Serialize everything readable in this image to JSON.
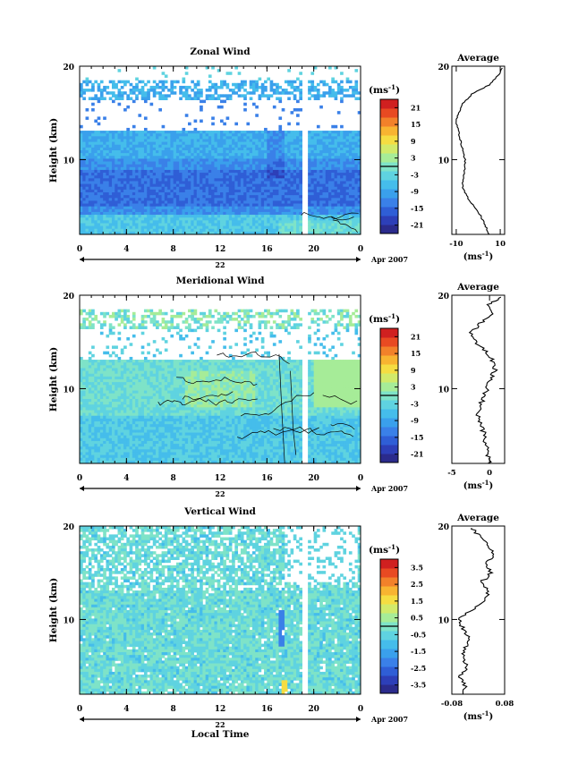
{
  "colors": {
    "colormap": [
      "#2b2b8c",
      "#2d3fb8",
      "#2f5ed6",
      "#3a80e8",
      "#3aa0ec",
      "#45bdeb",
      "#5fd3e0",
      "#7ee3c8",
      "#a6ec98",
      "#d2ea6a",
      "#f5dd42",
      "#f8b431",
      "#f2812a",
      "#e84a22",
      "#d02020"
    ],
    "zero_line": "#000000"
  },
  "chart_data": [
    {
      "type": "heatmap",
      "title": "Zonal Wind",
      "xlabel": "",
      "ylabel": "Height (km)",
      "x_ticks": [
        "0",
        "4",
        "8",
        "12",
        "16",
        "20",
        "0"
      ],
      "y_ticks": [
        "20",
        "10"
      ],
      "xlim": [
        0,
        24
      ],
      "ylim": [
        2,
        20
      ],
      "date_label": "22",
      "date_suffix": "Apr 2007",
      "colorbar": {
        "unit_prefix": "(ms",
        "unit_exp": "-1",
        "unit_suffix": ")",
        "ticks": [
          "21",
          "15",
          "9",
          "3",
          "-3",
          "-9",
          "-15",
          "-21"
        ],
        "range": [
          -24,
          24
        ]
      },
      "profile": {
        "title": "Average",
        "xlim": [
          -12,
          12
        ],
        "x_ticks": [
          "-10",
          "10"
        ],
        "xlabel_prefix": "(ms",
        "xlabel_exp": "-1",
        "xlabel_suffix": ")",
        "y_ticks": [
          "20",
          "10"
        ],
        "heights": [
          2,
          3,
          4,
          5,
          6,
          7,
          8,
          9,
          10,
          11,
          12,
          13,
          14,
          15,
          16,
          17,
          18,
          19,
          19.8
        ],
        "values": [
          5,
          3,
          1,
          -2,
          -5,
          -7,
          -7,
          -6,
          -6,
          -7,
          -8,
          -9,
          -10,
          -9,
          -7,
          -3,
          5,
          9,
          11
        ]
      }
    },
    {
      "type": "heatmap",
      "title": "Meridional Wind",
      "xlabel": "",
      "ylabel": "Height (km)",
      "x_ticks": [
        "0",
        "4",
        "8",
        "12",
        "16",
        "20",
        "0"
      ],
      "y_ticks": [
        "20",
        "10"
      ],
      "xlim": [
        0,
        24
      ],
      "ylim": [
        2,
        20
      ],
      "date_label": "22",
      "date_suffix": "Apr 2007",
      "colorbar": {
        "unit_prefix": "(ms",
        "unit_exp": "-1",
        "unit_suffix": ")",
        "ticks": [
          "21",
          "15",
          "9",
          "3",
          "-3",
          "-9",
          "-15",
          "-21"
        ],
        "range": [
          -24,
          24
        ]
      },
      "profile": {
        "title": "Average",
        "xlim": [
          -5,
          2
        ],
        "x_ticks": [
          "-5",
          "0"
        ],
        "xlabel_prefix": "(ms",
        "xlabel_exp": "-1",
        "xlabel_suffix": ")",
        "y_ticks": [
          "20",
          "10"
        ],
        "heights": [
          2,
          3,
          4,
          5,
          6,
          7,
          8,
          9,
          10,
          11,
          12,
          13,
          14,
          15,
          16,
          17,
          18,
          19,
          19.8
        ],
        "values": [
          0,
          -0.3,
          -0.5,
          -0.6,
          -1.2,
          -1.5,
          -1.4,
          -0.8,
          -0.3,
          0.2,
          0.7,
          0.4,
          -0.5,
          -1.8,
          -2.4,
          -1.2,
          0.5,
          -0.2,
          1.5
        ]
      }
    },
    {
      "type": "heatmap",
      "title": "Vertical Wind",
      "xlabel": "Local Time",
      "ylabel": "Height (km)",
      "x_ticks": [
        "0",
        "4",
        "8",
        "12",
        "16",
        "20",
        "0"
      ],
      "y_ticks": [
        "20",
        "10"
      ],
      "xlim": [
        0,
        24
      ],
      "ylim": [
        2,
        20
      ],
      "date_label": "22",
      "date_suffix": "Apr 2007",
      "colorbar": {
        "unit_prefix": "(ms",
        "unit_exp": "-1",
        "unit_suffix": ")",
        "ticks": [
          "3.5",
          "2.5",
          "1.5",
          "0.5",
          "-0.5",
          "-1.5",
          "-2.5",
          "-3.5"
        ],
        "range": [
          -4,
          4
        ]
      },
      "profile": {
        "title": "Average",
        "xlim": [
          -0.08,
          0.08
        ],
        "x_ticks": [
          "-0.08",
          "0.08"
        ],
        "xlabel_prefix": "(ms",
        "xlabel_exp": "-1",
        "xlabel_suffix": ")",
        "y_ticks": [
          "20",
          "10"
        ],
        "heights": [
          2,
          3,
          4,
          5,
          6,
          7,
          8,
          9,
          10,
          11,
          12,
          13,
          14,
          15,
          16,
          17,
          18,
          19,
          19.8
        ],
        "values": [
          -0.05,
          -0.04,
          -0.055,
          -0.03,
          -0.05,
          -0.04,
          -0.03,
          -0.045,
          -0.06,
          -0.02,
          0.02,
          0.03,
          0.01,
          0.04,
          0.02,
          0.05,
          0.03,
          0.0,
          -0.02
        ]
      }
    }
  ]
}
